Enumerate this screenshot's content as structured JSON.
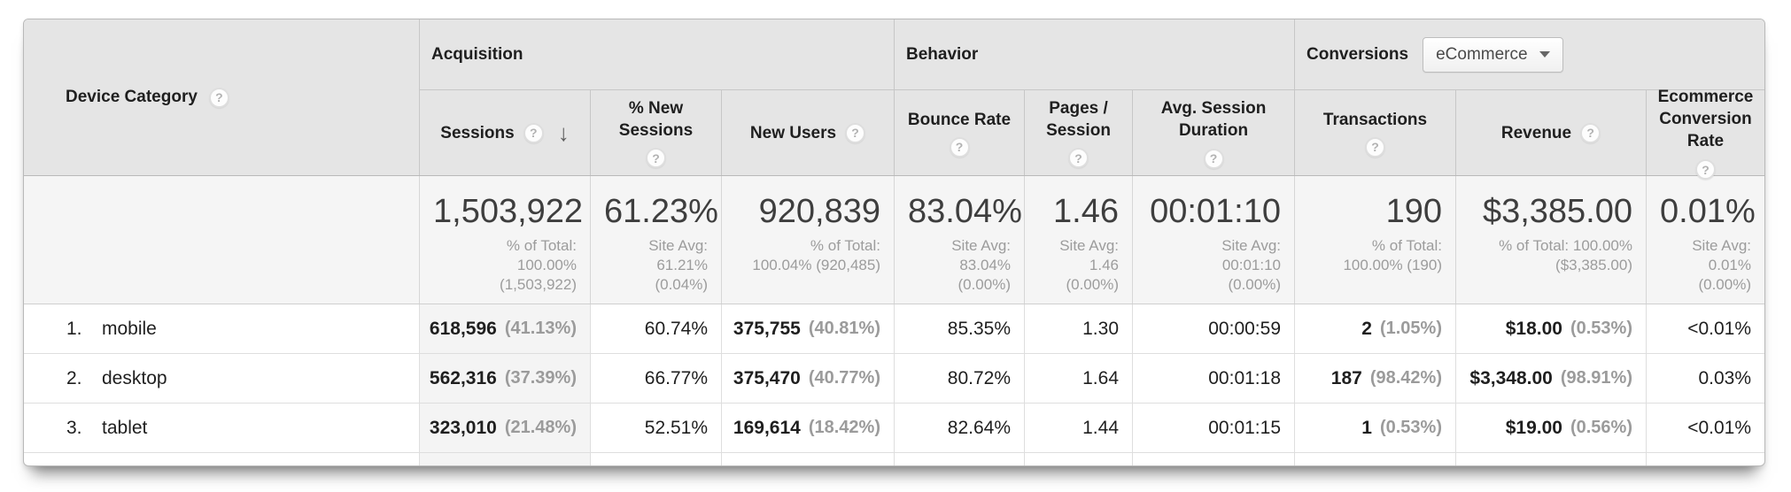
{
  "table": {
    "dimension": {
      "label": "Device Category",
      "help_icon": "?"
    },
    "groups": {
      "acquisition": "Acquisition",
      "behavior": "Behavior",
      "conversions": "Conversions",
      "conversions_selector": "eCommerce"
    },
    "columns": {
      "sessions": "Sessions",
      "pct_new_sessions": "% New Sessions",
      "new_users": "New Users",
      "bounce_rate": "Bounce Rate",
      "pages_session": "Pages / Session",
      "avg_duration": "Avg. Session Duration",
      "transactions": "Transactions",
      "revenue": "Revenue",
      "ecom_rate": "Ecommerce Conversion Rate",
      "help_icon": "?",
      "sort_arrow": "↓",
      "sorted_by": "Sessions"
    },
    "summary": {
      "sessions": {
        "value": "1,503,922",
        "note": "% of Total:\n100.00%\n(1,503,922)"
      },
      "pct_new_sessions": {
        "value": "61.23%",
        "note": "Site Avg:\n61.21%\n(0.04%)"
      },
      "new_users": {
        "value": "920,839",
        "note": "% of Total:\n100.04% (920,485)"
      },
      "bounce_rate": {
        "value": "83.04%",
        "note": "Site Avg:\n83.04%\n(0.00%)"
      },
      "pages_session": {
        "value": "1.46",
        "note": "Site Avg:\n1.46\n(0.00%)"
      },
      "avg_duration": {
        "value": "00:01:10",
        "note": "Site Avg:\n00:01:10\n(0.00%)"
      },
      "transactions": {
        "value": "190",
        "note": "% of Total:\n100.00% (190)"
      },
      "revenue": {
        "value": "$3,385.00",
        "note": "% of Total: 100.00%\n($3,385.00)"
      },
      "ecom_rate": {
        "value": "0.01%",
        "note": "Site Avg:\n0.01%\n(0.00%)"
      }
    },
    "rows": [
      {
        "rank": "1.",
        "name": "mobile",
        "sessions": {
          "value": "618,596",
          "share": "(41.13%)"
        },
        "pct_new_sessions": "60.74%",
        "new_users": {
          "value": "375,755",
          "share": "(40.81%)"
        },
        "bounce_rate": "85.35%",
        "pages_session": "1.30",
        "avg_duration": "00:00:59",
        "transactions": {
          "value": "2",
          "share": "(1.05%)"
        },
        "revenue": {
          "value": "$18.00",
          "share": "(0.53%)"
        },
        "ecom_rate": "<0.01%"
      },
      {
        "rank": "2.",
        "name": "desktop",
        "sessions": {
          "value": "562,316",
          "share": "(37.39%)"
        },
        "pct_new_sessions": "66.77%",
        "new_users": {
          "value": "375,470",
          "share": "(40.77%)"
        },
        "bounce_rate": "80.72%",
        "pages_session": "1.64",
        "avg_duration": "00:01:18",
        "transactions": {
          "value": "187",
          "share": "(98.42%)"
        },
        "revenue": {
          "value": "$3,348.00",
          "share": "(98.91%)"
        },
        "ecom_rate": "0.03%"
      },
      {
        "rank": "3.",
        "name": "tablet",
        "sessions": {
          "value": "323,010",
          "share": "(21.48%)"
        },
        "pct_new_sessions": "52.51%",
        "new_users": {
          "value": "169,614",
          "share": "(18.42%)"
        },
        "bounce_rate": "82.64%",
        "pages_session": "1.44",
        "avg_duration": "00:01:15",
        "transactions": {
          "value": "1",
          "share": "(0.53%)"
        },
        "revenue": {
          "value": "$19.00",
          "share": "(0.56%)"
        },
        "ecom_rate": "<0.01%"
      }
    ]
  }
}
